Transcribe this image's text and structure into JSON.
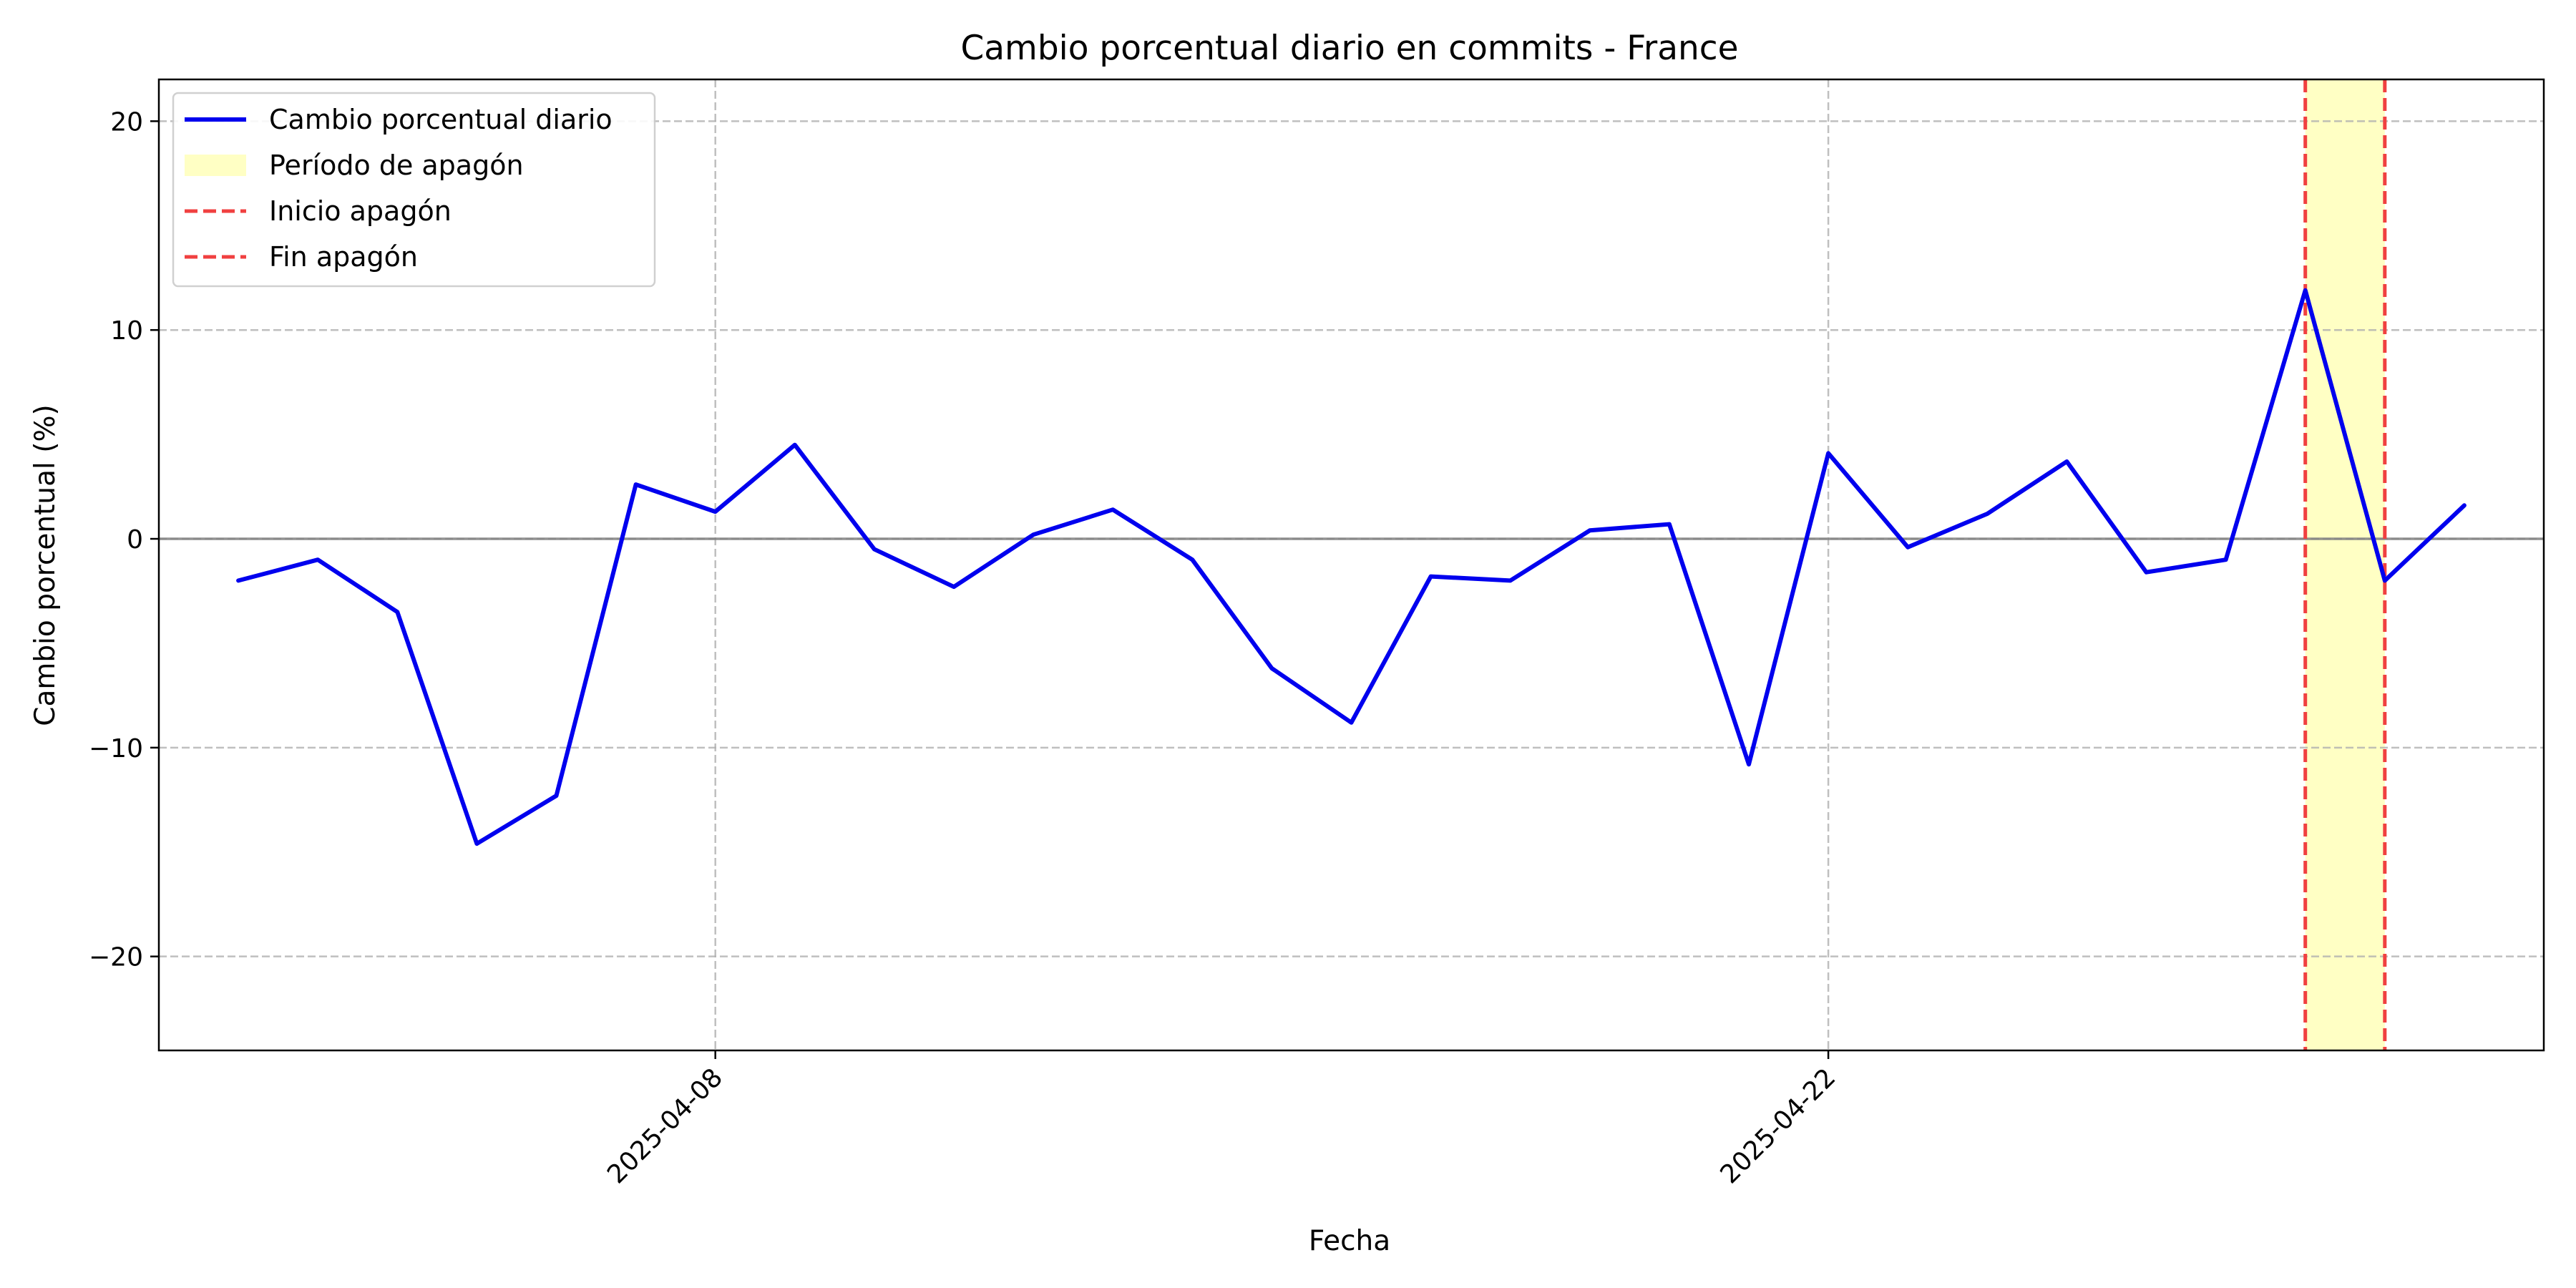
{
  "chart_data": {
    "type": "line",
    "title": "Cambio porcentual diario en commits - France",
    "xlabel": "Fecha",
    "ylabel": "Cambio porcentual (%)",
    "x": [
      "2025-04-02",
      "2025-04-03",
      "2025-04-04",
      "2025-04-05",
      "2025-04-06",
      "2025-04-07",
      "2025-04-08",
      "2025-04-09",
      "2025-04-10",
      "2025-04-11",
      "2025-04-12",
      "2025-04-13",
      "2025-04-14",
      "2025-04-15",
      "2025-04-16",
      "2025-04-17",
      "2025-04-18",
      "2025-04-19",
      "2025-04-20",
      "2025-04-21",
      "2025-04-22",
      "2025-04-23",
      "2025-04-24",
      "2025-04-25",
      "2025-04-26",
      "2025-04-27",
      "2025-04-28",
      "2025-04-29",
      "2025-04-30"
    ],
    "series": [
      {
        "name": "Cambio porcentual diario",
        "color": "#0000ee",
        "values": [
          -2.0,
          -1.0,
          -3.5,
          -14.6,
          -12.3,
          2.6,
          1.3,
          4.5,
          -0.5,
          -2.3,
          0.2,
          1.4,
          -1.0,
          -6.2,
          -8.8,
          -1.8,
          -2.0,
          0.4,
          0.7,
          -10.8,
          4.1,
          -0.4,
          1.2,
          3.7,
          -1.6,
          -1.0,
          11.9,
          -2.0,
          1.6
        ]
      }
    ],
    "xticks": [
      "2025-04-08",
      "2025-04-22"
    ],
    "yticks": [
      -20,
      -10,
      0,
      10,
      20
    ],
    "ytick_labels": [
      "−20",
      "−10",
      "0",
      "10",
      "20"
    ],
    "xlim": [
      "2025-04-01",
      "2025-05-01"
    ],
    "ylim": [
      -24.5,
      22
    ],
    "grid": true,
    "zero_line": 0,
    "blackout": {
      "start": "2025-04-28",
      "end": "2025-04-29",
      "fill_color": "#ffffc4",
      "line_color": "#f04040"
    },
    "legend": {
      "placement": "top-left",
      "entries": [
        {
          "label": "Cambio porcentual diario",
          "kind": "line",
          "color": "#0000ee"
        },
        {
          "label": "Período de apagón",
          "kind": "patch",
          "color": "#ffffc4"
        },
        {
          "label": "Inicio apagón",
          "kind": "dashed",
          "color": "#f04040"
        },
        {
          "label": "Fin apagón",
          "kind": "dashed",
          "color": "#f04040"
        }
      ]
    }
  }
}
